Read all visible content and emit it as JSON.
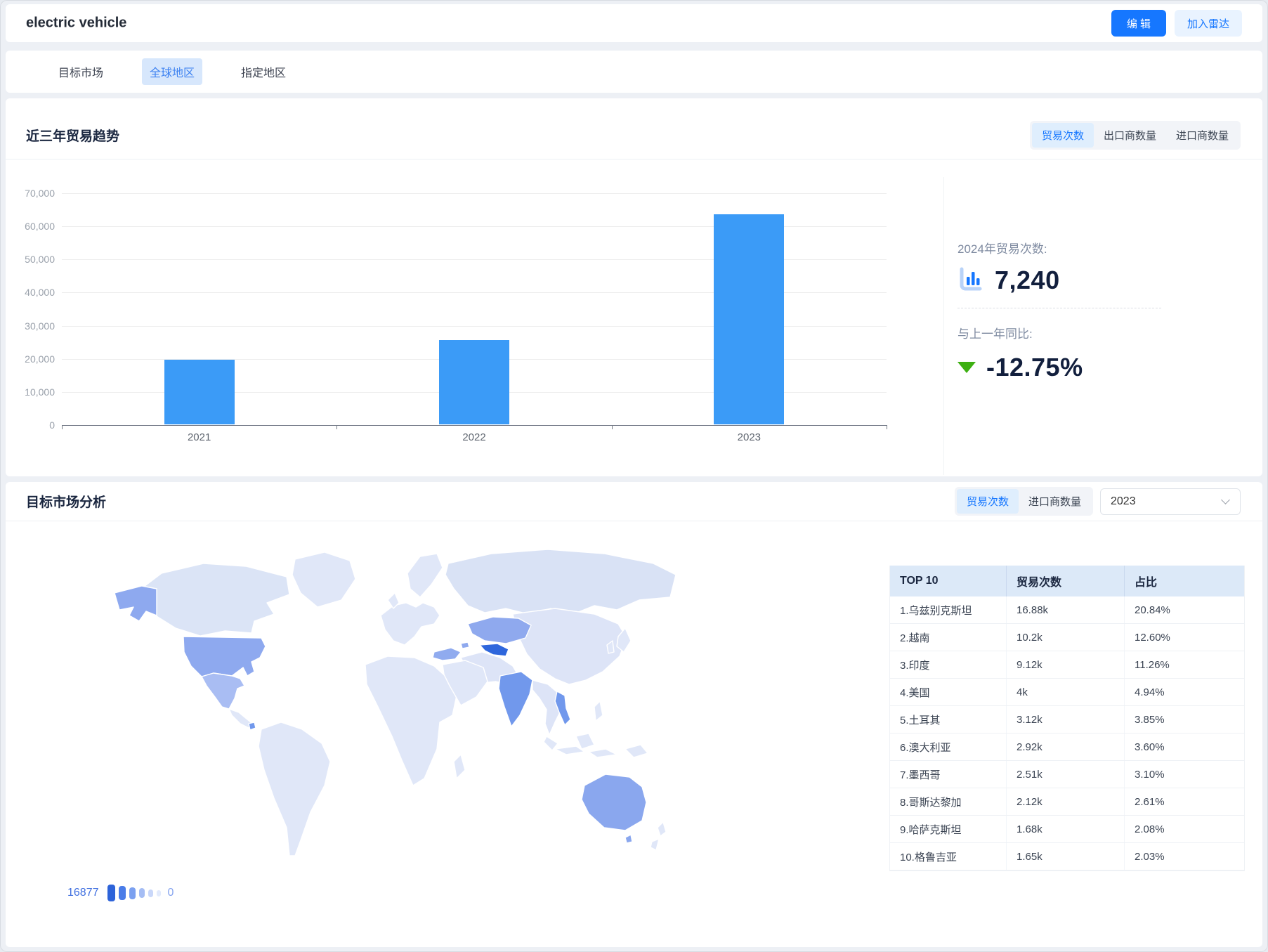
{
  "app": {
    "title": "electric vehicle"
  },
  "header": {
    "edit_button": "编 辑",
    "radar_button": "加入雷达"
  },
  "tabs": {
    "items": [
      {
        "label": "目标市场",
        "active": false
      },
      {
        "label": "全球地区",
        "active": true
      },
      {
        "label": "指定地区",
        "active": false
      }
    ]
  },
  "trend_section": {
    "title": "近三年贸易趋势",
    "toggles": [
      {
        "label": "贸易次数",
        "active": true
      },
      {
        "label": "出口商数量",
        "active": false
      },
      {
        "label": "进口商数量",
        "active": false
      }
    ],
    "stats": {
      "current_label": "2024年贸易次数:",
      "current_value": "7,240",
      "yoy_label": "与上一年同比:",
      "yoy_value": "-12.75%",
      "yoy_direction": "down",
      "yoy_arrow_color": "#3db012"
    }
  },
  "chart_data": {
    "type": "bar",
    "title": "近三年贸易趋势",
    "series_name": "贸易次数",
    "categories": [
      "2021",
      "2022",
      "2023"
    ],
    "values": [
      19500,
      25500,
      63500
    ],
    "ylim": [
      0,
      70000
    ],
    "yticks": [
      0,
      10000,
      20000,
      30000,
      40000,
      50000,
      60000,
      70000
    ],
    "ytick_labels": [
      "0",
      "10,000",
      "20,000",
      "30,000",
      "40,000",
      "50,000",
      "60,000",
      "70,000"
    ],
    "xlabel": "",
    "ylabel": "",
    "grid": true,
    "legend_position": "none",
    "bar_color": "#3b9bf7"
  },
  "market_section": {
    "title": "目标市场分析",
    "toggles": [
      {
        "label": "贸易次数",
        "active": true
      },
      {
        "label": "进口商数量",
        "active": false
      }
    ],
    "year_select": {
      "value": "2023"
    },
    "map_legend": {
      "max": "16877",
      "min": "0"
    },
    "map": {
      "max_color": "#2e66dc",
      "base_color": "#e0e7f8",
      "highlighted_countries": [
        "乌兹别克斯坦",
        "越南",
        "印度",
        "美国",
        "土耳其",
        "澳大利亚",
        "墨西哥",
        "哥斯达黎加",
        "哈萨克斯坦",
        "格鲁吉亚"
      ]
    },
    "table": {
      "headers": [
        "TOP 10",
        "贸易次数",
        "占比"
      ],
      "rows": [
        {
          "name": "1.乌兹别克斯坦",
          "value": "16.88k",
          "share": "20.84%"
        },
        {
          "name": "2.越南",
          "value": "10.2k",
          "share": "12.60%"
        },
        {
          "name": "3.印度",
          "value": "9.12k",
          "share": "11.26%"
        },
        {
          "name": "4.美国",
          "value": "4k",
          "share": "4.94%"
        },
        {
          "name": "5.土耳其",
          "value": "3.12k",
          "share": "3.85%"
        },
        {
          "name": "6.澳大利亚",
          "value": "2.92k",
          "share": "3.60%"
        },
        {
          "name": "7.墨西哥",
          "value": "2.51k",
          "share": "3.10%"
        },
        {
          "name": "8.哥斯达黎加",
          "value": "2.12k",
          "share": "2.61%"
        },
        {
          "name": "9.哈萨克斯坦",
          "value": "1.68k",
          "share": "2.08%"
        },
        {
          "name": "10.格鲁吉亚",
          "value": "1.65k",
          "share": "2.03%"
        }
      ]
    }
  },
  "colors": {
    "primary": "#1677ff",
    "bar": "#3b9bf7",
    "table_header_bg": "#dce9f8"
  }
}
